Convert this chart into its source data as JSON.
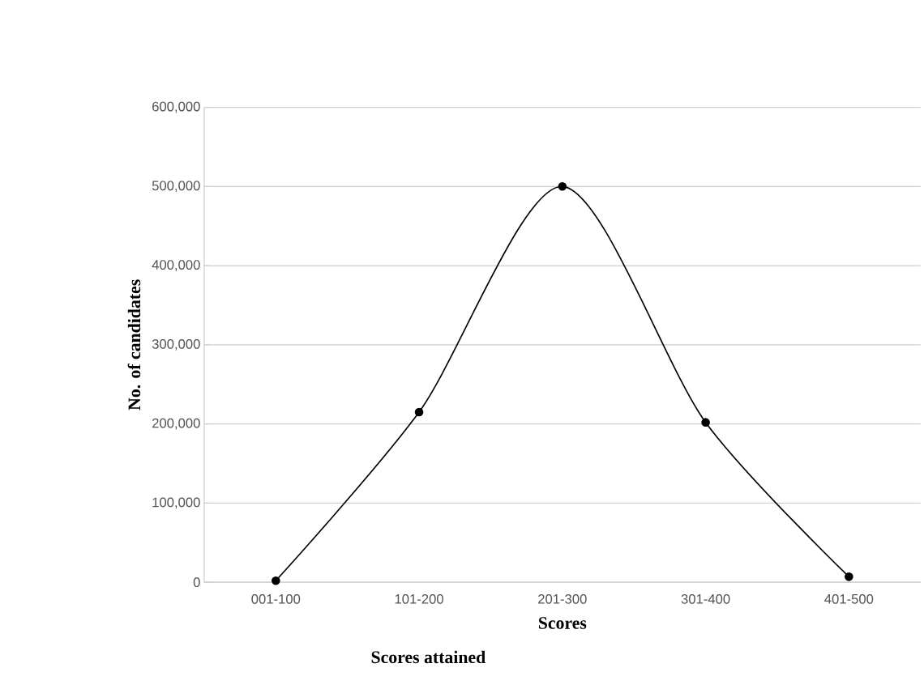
{
  "chart_data": {
    "type": "line",
    "xlabel": "Scores",
    "ylabel": "No. of candidates",
    "annotations": [
      "Scores attained"
    ],
    "categories": [
      "001-100",
      "101-200",
      "201-300",
      "301-400",
      "401-500"
    ],
    "values": [
      2000,
      215000,
      500000,
      202000,
      7000
    ],
    "color": "#000000",
    "marker": "circle",
    "line_style": "solid",
    "grid": "y",
    "ylim": [
      0,
      600000
    ],
    "yticks": [
      {
        "value": 0,
        "label": "0"
      },
      {
        "value": 100000,
        "label": "100,000"
      },
      {
        "value": 200000,
        "label": "200,000"
      },
      {
        "value": 300000,
        "label": "300,000"
      },
      {
        "value": 400000,
        "label": "400,000"
      },
      {
        "value": 500000,
        "label": "500,000"
      },
      {
        "value": 600000,
        "label": "600,000"
      }
    ]
  }
}
